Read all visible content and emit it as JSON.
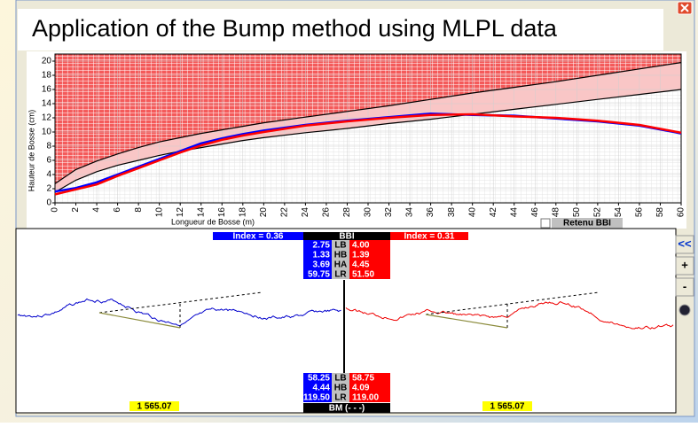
{
  "title": "Application of the Bump method using MLPL data",
  "chart_data": {
    "type": "line",
    "y_label": "Hauteur de Bosse (cm)",
    "x_label": "Longueur de Bosse (m)",
    "x": [
      0,
      2,
      4,
      6,
      8,
      10,
      12,
      14,
      16,
      18,
      20,
      24,
      28,
      32,
      36,
      40,
      44,
      48,
      52,
      56,
      60
    ],
    "xlim": [
      0,
      60
    ],
    "xticks": [
      0,
      2,
      4,
      6,
      8,
      10,
      12,
      14,
      16,
      18,
      20,
      22,
      24,
      26,
      28,
      30,
      32,
      34,
      36,
      38,
      40,
      42,
      44,
      46,
      48,
      50,
      52,
      54,
      56,
      58,
      60
    ],
    "ylim": [
      0,
      21
    ],
    "yticks": [
      0,
      2,
      4,
      6,
      8,
      10,
      12,
      14,
      16,
      18,
      20
    ],
    "grid": true,
    "series": [
      {
        "color": "#000000",
        "values": [
          2.7,
          4.7,
          5.9,
          6.9,
          7.8,
          8.6,
          9.2,
          9.8,
          10.3,
          10.8,
          11.3,
          12.1,
          12.9,
          13.7,
          14.6,
          15.5,
          16.3,
          17.1,
          18.0,
          18.9,
          19.8
        ]
      },
      {
        "color": "#000000",
        "values": [
          1.5,
          3.2,
          4.4,
          5.3,
          6.0,
          6.7,
          7.3,
          7.8,
          8.3,
          8.8,
          9.2,
          9.9,
          10.5,
          11.2,
          11.8,
          12.5,
          13.2,
          13.9,
          14.6,
          15.3,
          16.0
        ]
      },
      {
        "color": "#0000ff",
        "values": [
          1.6,
          2.1,
          2.9,
          4.0,
          5.1,
          6.2,
          7.3,
          8.4,
          9.1,
          9.7,
          10.2,
          11.0,
          11.6,
          12.1,
          12.6,
          12.4,
          12.3,
          11.9,
          11.5,
          10.9,
          9.8
        ]
      },
      {
        "color": "#ff0000",
        "values": [
          1.2,
          1.9,
          2.6,
          3.8,
          4.9,
          6.0,
          7.1,
          8.1,
          8.9,
          9.5,
          10.0,
          10.9,
          11.5,
          12.0,
          12.4,
          12.5,
          12.2,
          12.0,
          11.6,
          11.0,
          9.9
        ]
      }
    ]
  },
  "checkbox": {
    "label": "Retenu BBI"
  },
  "bbi": {
    "header": "BBI",
    "left_index": "Index = 0.36",
    "right_index": "Index = 0.31",
    "rows": [
      [
        "2.75",
        "LB",
        "4.00"
      ],
      [
        "1.33",
        "HB",
        "1.39"
      ],
      [
        "3.69",
        "HA",
        "4.45"
      ],
      [
        "59.75",
        "LR",
        "51.50"
      ]
    ]
  },
  "bm": {
    "rows": [
      [
        "58.25",
        "LB",
        "58.75"
      ],
      [
        "4.44",
        "HB",
        "4.09"
      ],
      [
        "119.50",
        "LR",
        "119.00"
      ]
    ],
    "left_total": "1 565.07",
    "right_total": "1 565.07",
    "label": "BM (- - -)"
  },
  "buttons": [
    "<<",
    "+",
    "-"
  ]
}
